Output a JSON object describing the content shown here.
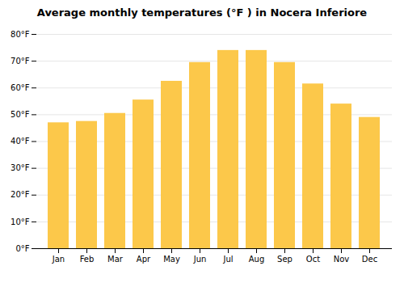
{
  "chart_data": {
    "type": "bar",
    "title": "Average monthly temperatures (°F ) in Nocera Inferiore",
    "categories": [
      "Jan",
      "Feb",
      "Mar",
      "Apr",
      "May",
      "Jun",
      "Jul",
      "Aug",
      "Sep",
      "Oct",
      "Nov",
      "Dec"
    ],
    "values": [
      47,
      47.5,
      50.5,
      55.5,
      62.5,
      69.5,
      74,
      74,
      69.5,
      61.5,
      54,
      49
    ],
    "color": "#FCC84A",
    "ylim": [
      0,
      80
    ],
    "yticks": [
      {
        "value": 0,
        "label": "0°F"
      },
      {
        "value": 10,
        "label": "10°F"
      },
      {
        "value": 20,
        "label": "20°F"
      },
      {
        "value": 30,
        "label": "30°F"
      },
      {
        "value": 40,
        "label": "40°F"
      },
      {
        "value": 50,
        "label": "50°F"
      },
      {
        "value": 60,
        "label": "60°F"
      },
      {
        "value": 70,
        "label": "70°F"
      },
      {
        "value": 80,
        "label": "80°F"
      }
    ],
    "grid": true
  }
}
